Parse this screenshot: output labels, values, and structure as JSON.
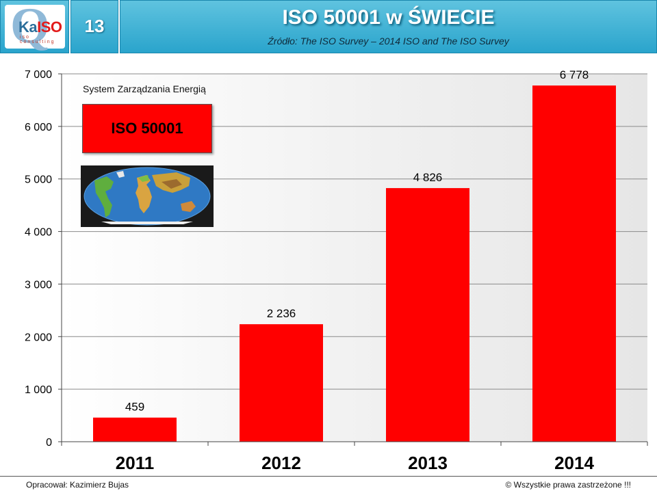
{
  "header": {
    "slide_number": "13",
    "title": "ISO 50001 w ŚWIECIE",
    "subtitle": "Źródło: The ISO Survey – 2014   ISO and The ISO Survey",
    "logo_text_prefix": "Ka",
    "logo_text_iso": "ISO",
    "logo_sub": "iso consulting"
  },
  "inset": {
    "energy_label": "System Zarządzania Energią",
    "iso_box_label": "ISO 50001",
    "map_icon": "world-map-icon"
  },
  "footer": {
    "left": "Opracował: Kazimierz Bujas",
    "right": "© Wszystkie prawa zastrzeżone !!!"
  },
  "colors": {
    "header_blue": "#2aa4cc",
    "bar_red": "#ff0000"
  },
  "chart_data": {
    "type": "bar",
    "categories": [
      "2011",
      "2012",
      "2013",
      "2014"
    ],
    "values": [
      459,
      2236,
      4826,
      6778
    ],
    "value_labels": [
      "459",
      "2 236",
      "4 826",
      "6 778"
    ],
    "y_ticks": [
      0,
      1000,
      2000,
      3000,
      4000,
      5000,
      6000,
      7000
    ],
    "y_tick_labels": [
      "0",
      "1 000",
      "2 000",
      "3 000",
      "4 000",
      "5 000",
      "6 000",
      "7 000"
    ],
    "ylim": [
      0,
      7000
    ],
    "title": "",
    "xlabel": "",
    "ylabel": "",
    "grid": true,
    "legend": "none"
  }
}
